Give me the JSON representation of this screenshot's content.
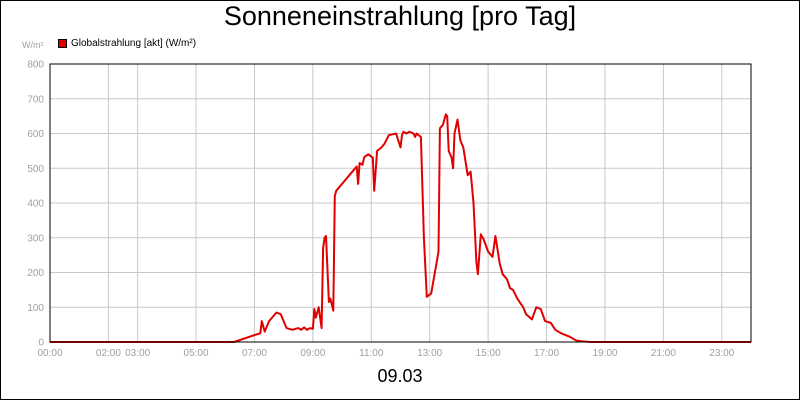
{
  "chart_data": {
    "type": "line",
    "title": "Sonneneinstrahlung [pro Tag]",
    "ylabel": "W/m²",
    "date_label": "09.03",
    "ylim": [
      0,
      800
    ],
    "yticks": [
      0,
      100,
      200,
      300,
      400,
      500,
      600,
      700,
      800
    ],
    "xlim": [
      0,
      24
    ],
    "xticks": [
      {
        "h": 0,
        "label": "00:00"
      },
      {
        "h": 2,
        "label": "02:00"
      },
      {
        "h": 3,
        "label": "03:00"
      },
      {
        "h": 5,
        "label": "05:00"
      },
      {
        "h": 7,
        "label": "07:00"
      },
      {
        "h": 9,
        "label": "09:00"
      },
      {
        "h": 11,
        "label": "11:00"
      },
      {
        "h": 13,
        "label": "13:00"
      },
      {
        "h": 15,
        "label": "15:00"
      },
      {
        "h": 17,
        "label": "17:00"
      },
      {
        "h": 19,
        "label": "19:00"
      },
      {
        "h": 21,
        "label": "21:00"
      },
      {
        "h": 23,
        "label": "23:00"
      }
    ],
    "grid": true,
    "legend_position": "top-left",
    "series": [
      {
        "name": "Globalstrahlung [akt] (W/m²)",
        "color": "#e10000",
        "x": [
          0,
          6.3,
          7.0,
          7.2,
          7.25,
          7.35,
          7.5,
          7.75,
          7.9,
          8.1,
          8.3,
          8.5,
          8.6,
          8.7,
          8.8,
          8.9,
          9.0,
          9.05,
          9.1,
          9.2,
          9.3,
          9.35,
          9.4,
          9.45,
          9.55,
          9.6,
          9.7,
          9.75,
          9.8,
          10.1,
          10.35,
          10.5,
          10.55,
          10.6,
          10.7,
          10.75,
          10.8,
          10.9,
          11.05,
          11.1,
          11.2,
          11.35,
          11.45,
          11.6,
          11.85,
          12.0,
          12.05,
          12.1,
          12.2,
          12.3,
          12.45,
          12.5,
          12.55,
          12.7,
          12.8,
          12.9,
          13.05,
          13.2,
          13.3,
          13.35,
          13.45,
          13.55,
          13.6,
          13.65,
          13.75,
          13.8,
          13.85,
          13.95,
          14.05,
          14.15,
          14.3,
          14.4,
          14.5,
          14.6,
          14.65,
          14.75,
          14.85,
          15.0,
          15.05,
          15.15,
          15.25,
          15.4,
          15.5,
          15.65,
          15.75,
          15.85,
          16.0,
          16.2,
          16.3,
          16.5,
          16.65,
          16.8,
          16.95,
          17.15,
          17.3,
          17.5,
          17.8,
          18.0,
          18.2,
          18.5,
          24
        ],
        "y": [
          0,
          0,
          20,
          25,
          60,
          30,
          60,
          85,
          80,
          40,
          35,
          40,
          35,
          42,
          35,
          40,
          38,
          95,
          70,
          100,
          40,
          270,
          300,
          305,
          115,
          125,
          90,
          420,
          435,
          465,
          490,
          505,
          455,
          515,
          510,
          530,
          535,
          540,
          530,
          435,
          550,
          560,
          570,
          595,
          600,
          560,
          595,
          605,
          600,
          605,
          600,
          590,
          600,
          590,
          300,
          130,
          140,
          210,
          260,
          615,
          625,
          655,
          650,
          550,
          530,
          500,
          600,
          640,
          580,
          560,
          480,
          490,
          400,
          230,
          195,
          310,
          295,
          260,
          255,
          245,
          305,
          225,
          195,
          180,
          155,
          150,
          125,
          100,
          80,
          65,
          100,
          95,
          60,
          55,
          35,
          25,
          15,
          5,
          2,
          0,
          0
        ]
      }
    ]
  }
}
